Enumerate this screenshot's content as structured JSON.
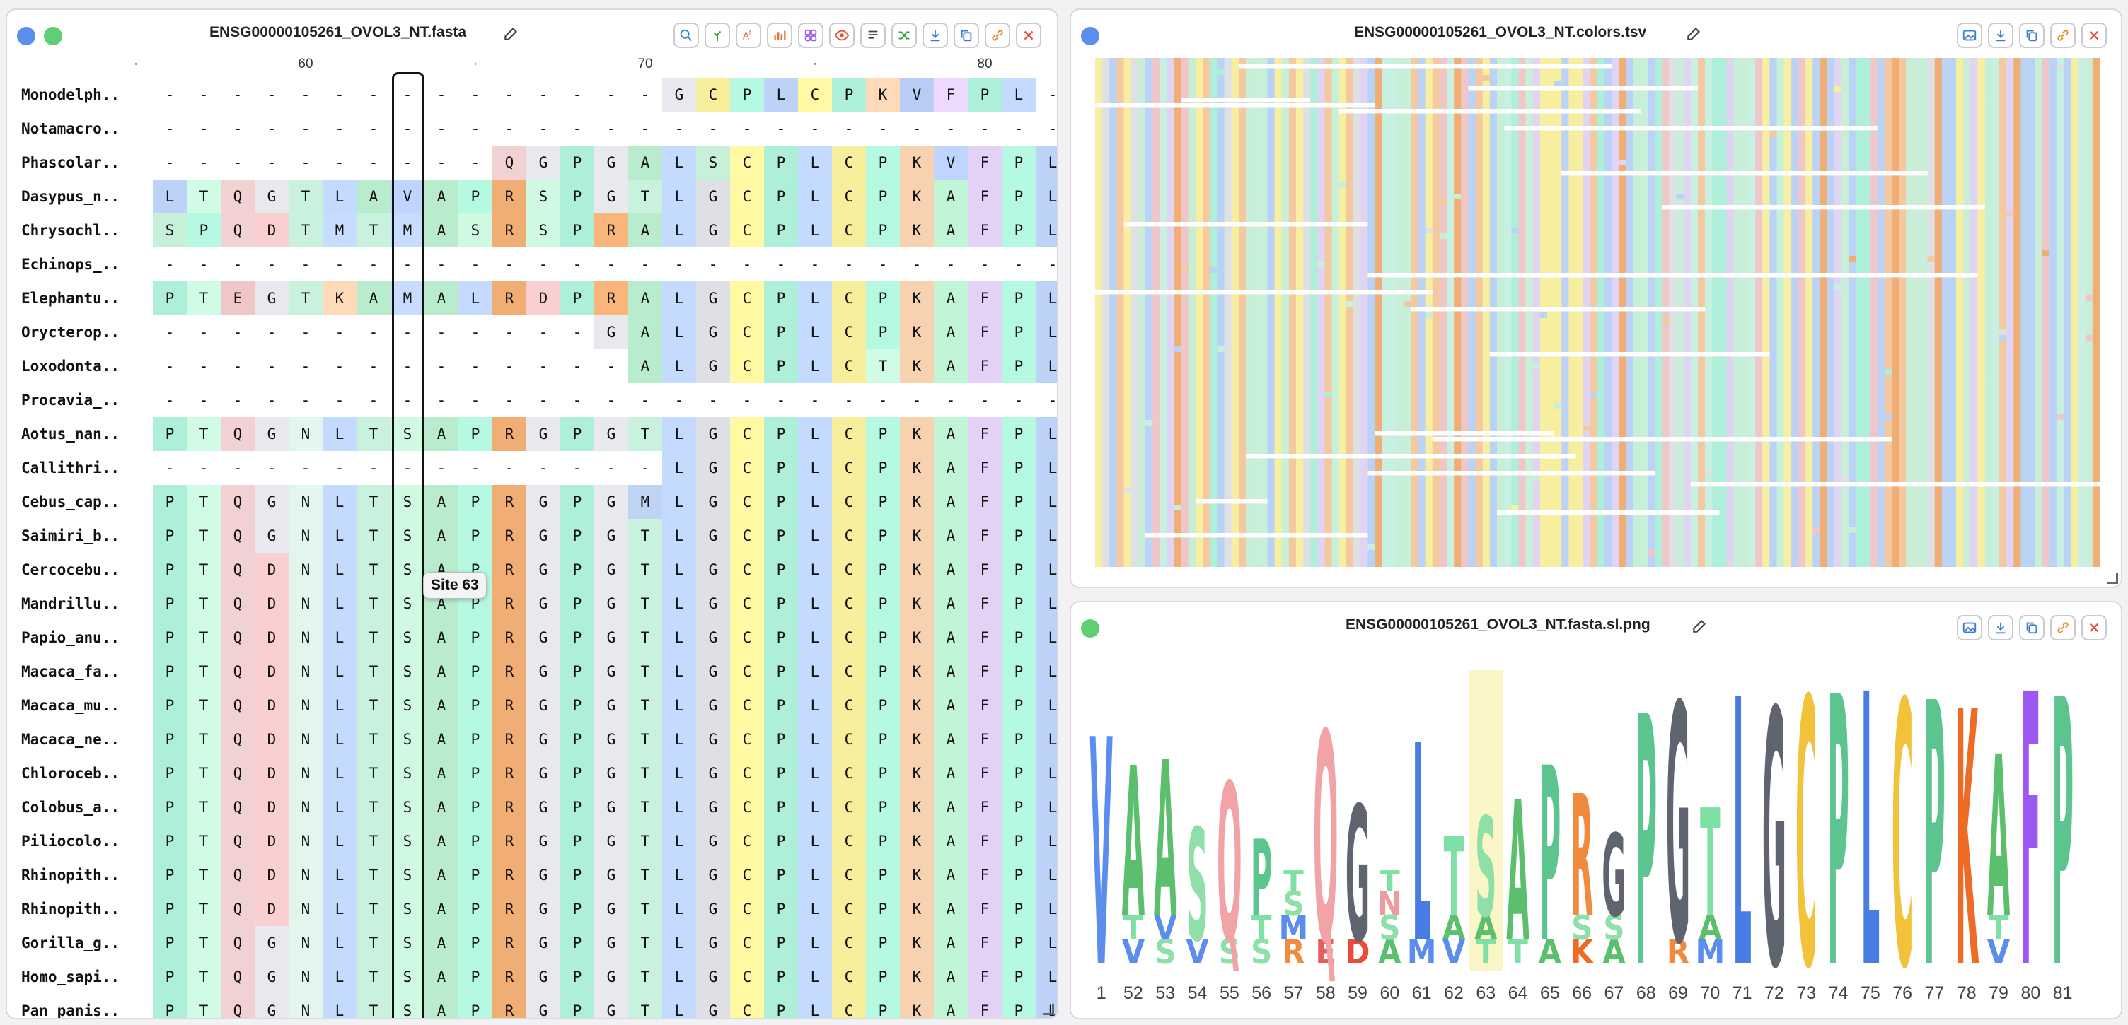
{
  "colors": {
    "A": "#b9eccd",
    "V": "#b8cdf6",
    "L": "#bcd2f7",
    "I": "#b9cff5",
    "M": "#bfd4f5",
    "F": "#e4d1f6",
    "W": "#e5d2f2",
    "G": "#dfe0e5",
    "P": "#aeefd9",
    "S": "#c7f0d8",
    "T": "#c8f2dd",
    "C": "#f8ef9d",
    "Y": "#d2ecf3",
    "N": "#e3f6ee",
    "Q": "#f2d1d2",
    "D": "#f0c7c9",
    "E": "#efc7c9",
    "K": "#f7d2b1",
    "R": "#f0ae75",
    "H": "#c9dbf3",
    "-": "#ffffff",
    "accent_blue": "#5b8def",
    "accent_green": "#5fcf73",
    "close_red": "#e74c3c"
  },
  "alignment_panel": {
    "title": "ENSG00000105261_OVOL3_NT.fasta",
    "ruler_labels": [
      {
        "col": 4,
        "text": "60"
      },
      {
        "col": 14,
        "text": "70"
      },
      {
        "col": 24,
        "text": "80"
      }
    ],
    "ruler_dots": [
      -1,
      9,
      19
    ],
    "tooltip": "Site 63",
    "selected_col": 7,
    "toolbar": [
      "search-icon",
      "tree-icon",
      "text-style-icon",
      "chart-icon",
      "grid-icon",
      "eye-icon",
      "list-icon",
      "shuffle-icon",
      "download-icon",
      "copy-icon",
      "link-icon",
      "close-icon"
    ],
    "rows": [
      {
        "name": "Monodelph..",
        "seq": "---------------GCPLCPKVFPL"
      },
      {
        "name": "Notamacro..",
        "seq": "--------------------------"
      },
      {
        "name": "Phascolar..",
        "seq": "----------QGPGALSCPLCPKVFPL"
      },
      {
        "name": "Dasypus_n..",
        "seq": "LTQGTLAVAPRSPGTLGCPLCPKAFPL"
      },
      {
        "name": "Chrysochl..",
        "seq": "SPQDTMTMASRSPRALGCPLCPKAFPL"
      },
      {
        "name": "Echinops_..",
        "seq": "--------------------------"
      },
      {
        "name": "Elephantu..",
        "seq": "PTEGTKAMALRDPRALGCPLCPKAFPL"
      },
      {
        "name": "Orycterop..",
        "seq": "-------------GALGCPLCPKAFPL"
      },
      {
        "name": "Loxodonta..",
        "seq": "--------------ALGCPLCTKAFPL"
      },
      {
        "name": "Procavia_..",
        "seq": "--------------------------"
      },
      {
        "name": "Aotus_nan..",
        "seq": "PTQGNLTSAPRGPGTLGCPLCPKAFPL"
      },
      {
        "name": "Callithri..",
        "seq": "---------------LGCPLCPKAFPL"
      },
      {
        "name": "Cebus_cap..",
        "seq": "PTQGNLTSAPRGPGMLGCPLCPKAFPL"
      },
      {
        "name": "Saimiri_b..",
        "seq": "PTQGNLTSAPRGPGTLGCPLCPKAFPL"
      },
      {
        "name": "Cercocebu..",
        "seq": "PTQDNLTSAPRGPGTLGCPLCPKAFPL"
      },
      {
        "name": "Mandrillu..",
        "seq": "PTQDNLTSAPRGPGTLGCPLCPKAFPL"
      },
      {
        "name": "Papio_anu..",
        "seq": "PTQDNLTSAPRGPGTLGCPLCPKAFPL"
      },
      {
        "name": "Macaca_fa..",
        "seq": "PTQDNLTSAPRGPGTLGCPLCPKAFPL"
      },
      {
        "name": "Macaca_mu..",
        "seq": "PTQDNLTSAPRGPGTLGCPLCPKAFPL"
      },
      {
        "name": "Macaca_ne..",
        "seq": "PTQDNLTSAPRGPGTLGCPLCPKAFPL"
      },
      {
        "name": "Chloroceb..",
        "seq": "PTQDNLTSAPRGPGTLGCPLCPKAFPL"
      },
      {
        "name": "Colobus_a..",
        "seq": "PTQDNLTSAPRGPGTLGCPLCPKAFPL"
      },
      {
        "name": "Piliocolo..",
        "seq": "PTQDNLTSAPRGPGTLGCPLCPKAFPL"
      },
      {
        "name": "Rhinopith..",
        "seq": "PTQDNLTSAPRGPGTLGCPLCPKAFPL"
      },
      {
        "name": "Rhinopith..",
        "seq": "PTQDNLTSAPRGPGTLGCPLCPKAFPL"
      },
      {
        "name": "Gorilla_g..",
        "seq": "PTQGNLTSAPRGPGTLGCPLCPKAFPL"
      },
      {
        "name": "Homo_sapi..",
        "seq": "PTQGNLTSAPRGPGTLGCPLCPKAFPL"
      },
      {
        "name": "Pan_panis..",
        "seq": "PTQGNLTSAPRGPGTLGCPLCPKAFPL"
      }
    ]
  },
  "colors_panel": {
    "title": "ENSG00000105261_OVOL3_NT.colors.tsv",
    "toolbar": [
      "image-icon",
      "download-icon",
      "copy-icon",
      "link-icon",
      "close-icon"
    ],
    "column_palette": [
      "#c9eed8",
      "#b9d3f6",
      "#f4c9a0",
      "#e1d3f4",
      "#c8f0e0",
      "#f7ef9f",
      "#dfe0e5",
      "#f0c7c9",
      "#aeefd9",
      "#f0ae75",
      "#bcd2f7",
      "#c7f0d8"
    ]
  },
  "logo_panel": {
    "title": "ENSG00000105261_OVOL3_NT.fasta.sl.png",
    "toolbar": [
      "image-icon",
      "download-icon",
      "copy-icon",
      "link-icon",
      "close-icon"
    ],
    "sites": [
      "1",
      "52",
      "53",
      "54",
      "55",
      "56",
      "57",
      "58",
      "59",
      "60",
      "61",
      "62",
      "63",
      "64",
      "65",
      "66",
      "67",
      "68",
      "69",
      "70",
      "71",
      "72",
      "73",
      "74",
      "75",
      "76",
      "77",
      "78",
      "79",
      "80",
      "81"
    ],
    "highlight_site": "63",
    "letters": [
      {
        "top": "V",
        "h": 0.8,
        "sub": []
      },
      {
        "top": "A",
        "h": 0.7,
        "sub": [
          "T",
          "V"
        ]
      },
      {
        "top": "A",
        "h": 0.72,
        "sub": [
          "V",
          "S"
        ]
      },
      {
        "top": "S",
        "h": 0.48,
        "sub": [
          "V"
        ]
      },
      {
        "top": "Q",
        "h": 0.64,
        "sub": [
          "S"
        ]
      },
      {
        "top": "P",
        "h": 0.44,
        "sub": [
          "T",
          "S"
        ]
      },
      {
        "top": "T",
        "h": 0.3,
        "sub": [
          "S",
          "M",
          "R"
        ]
      },
      {
        "top": "Q",
        "h": 0.82,
        "sub": [
          "E"
        ]
      },
      {
        "top": "G",
        "h": 0.56,
        "sub": [
          "D"
        ]
      },
      {
        "top": "T",
        "h": 0.28,
        "sub": [
          "N",
          "S",
          "A"
        ]
      },
      {
        "top": "L",
        "h": 0.78,
        "sub": [
          "M"
        ]
      },
      {
        "top": "T",
        "h": 0.45,
        "sub": [
          "A",
          "V"
        ]
      },
      {
        "top": "S",
        "h": 0.52,
        "sub": [
          "A",
          "T"
        ]
      },
      {
        "top": "A",
        "h": 0.58,
        "sub": [
          "T"
        ]
      },
      {
        "top": "P",
        "h": 0.7,
        "sub": [
          "A"
        ]
      },
      {
        "top": "R",
        "h": 0.6,
        "sub": [
          "S",
          "K"
        ]
      },
      {
        "top": "G",
        "h": 0.46,
        "sub": [
          "S",
          "A"
        ]
      },
      {
        "top": "P",
        "h": 0.88,
        "sub": []
      },
      {
        "top": "G",
        "h": 0.92,
        "sub": [
          "R"
        ]
      },
      {
        "top": "T",
        "h": 0.55,
        "sub": [
          "A",
          "M"
        ]
      },
      {
        "top": "L",
        "h": 0.94,
        "sub": []
      },
      {
        "top": "G",
        "h": 0.9,
        "sub": []
      },
      {
        "top": "C",
        "h": 0.94,
        "sub": []
      },
      {
        "top": "P",
        "h": 0.95,
        "sub": []
      },
      {
        "top": "L",
        "h": 0.96,
        "sub": []
      },
      {
        "top": "C",
        "h": 0.93,
        "sub": []
      },
      {
        "top": "P",
        "h": 0.93,
        "sub": []
      },
      {
        "top": "K",
        "h": 0.9,
        "sub": []
      },
      {
        "top": "A",
        "h": 0.74,
        "sub": [
          "T",
          "V"
        ]
      },
      {
        "top": "F",
        "h": 0.96,
        "sub": []
      },
      {
        "top": "P",
        "h": 0.94,
        "sub": []
      }
    ],
    "letter_colors": {
      "V": "#5b8def",
      "A": "#5cbf6d",
      "S": "#8fe0a8",
      "Q": "#f2a3a6",
      "P": "#5cc58f",
      "T": "#7fe0a6",
      "G": "#5f6470",
      "L": "#4a7de3",
      "R": "#f08a3c",
      "C": "#f2c23b",
      "K": "#ef6b25",
      "F": "#9b59f2",
      "D": "#e74c3c",
      "E": "#e85c5c",
      "N": "#ef9a9e",
      "M": "#5b8def"
    }
  }
}
